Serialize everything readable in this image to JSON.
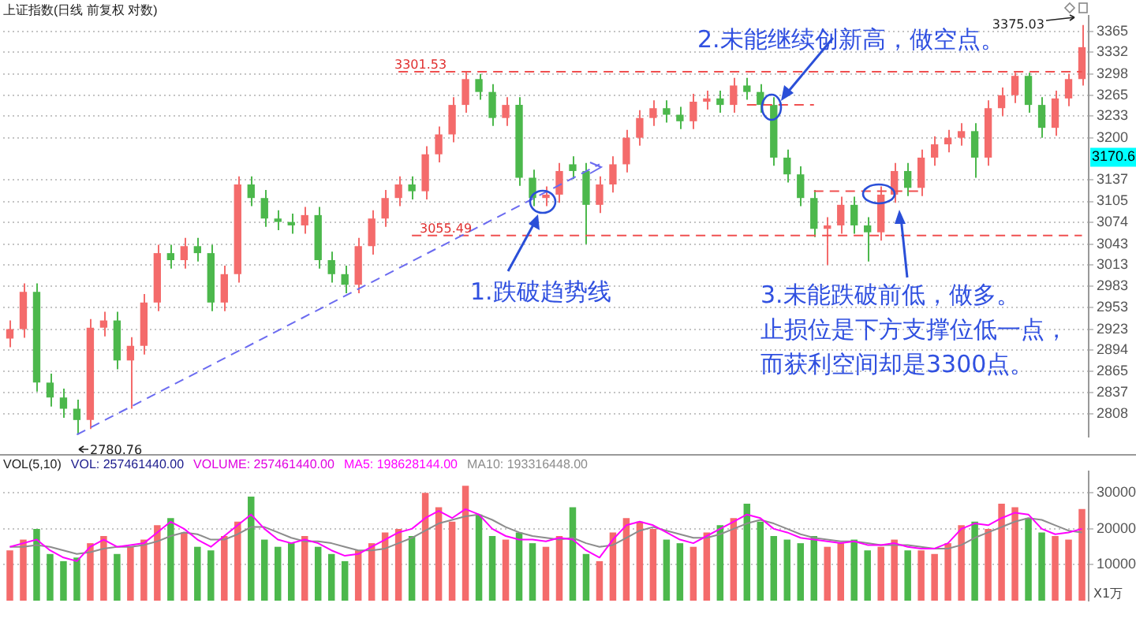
{
  "chart_data": [
    {
      "type": "candlestick",
      "title": "上证指数(日线 前复权 对数)",
      "categories": [
        null,
        null,
        null,
        null,
        null,
        null,
        null,
        null,
        null,
        null,
        null,
        null,
        null,
        null,
        null,
        null,
        null,
        null,
        null,
        null,
        null,
        null,
        null,
        null,
        null,
        null,
        null,
        null,
        null,
        null,
        null,
        null,
        null,
        null,
        null,
        null,
        null,
        null,
        null,
        null,
        null,
        null,
        null,
        null,
        null,
        null,
        null,
        null,
        null,
        null,
        null,
        null,
        null,
        null,
        null,
        null,
        null,
        null,
        null,
        null,
        null,
        null,
        null,
        null,
        null,
        null,
        null,
        null,
        null,
        null,
        null,
        null,
        null,
        null,
        null,
        null,
        null,
        null,
        null,
        null,
        null
      ],
      "ohlc": [
        [
          2910,
          2935,
          2898,
          2923
        ],
        [
          2923,
          2987,
          2911,
          2975
        ],
        [
          2975,
          2987,
          2838,
          2850
        ],
        [
          2850,
          2862,
          2818,
          2830
        ],
        [
          2830,
          2842,
          2803,
          2815
        ],
        [
          2815,
          2827,
          2780.76,
          2800
        ],
        [
          2800,
          2937,
          2788,
          2925
        ],
        [
          2925,
          2947,
          2913,
          2935
        ],
        [
          2935,
          2947,
          2868,
          2880
        ],
        [
          2880,
          2912,
          2815,
          2900
        ],
        [
          2900,
          2972,
          2888,
          2960
        ],
        [
          2960,
          3042,
          2948,
          3030
        ],
        [
          3030,
          3042,
          3008,
          3020
        ],
        [
          3020,
          3052,
          3008,
          3040
        ],
        [
          3040,
          3052,
          3018,
          3030
        ],
        [
          3030,
          3042,
          2948,
          2960
        ],
        [
          2960,
          3012,
          2948,
          3000
        ],
        [
          3000,
          3142,
          2988,
          3130
        ],
        [
          3130,
          3142,
          3098,
          3110
        ],
        [
          3110,
          3122,
          3068,
          3080
        ],
        [
          3080,
          3092,
          3063,
          3075
        ],
        [
          3075,
          3087,
          3058,
          3070
        ],
        [
          3070,
          3097,
          3058,
          3085
        ],
        [
          3085,
          3097,
          3008,
          3020
        ],
        [
          3020,
          3032,
          2988,
          3000
        ],
        [
          3000,
          3012,
          2973,
          2985
        ],
        [
          2985,
          3052,
          2973,
          3040
        ],
        [
          3040,
          3092,
          3028,
          3080
        ],
        [
          3080,
          3122,
          3068,
          3110
        ],
        [
          3110,
          3142,
          3098,
          3130
        ],
        [
          3130,
          3142,
          3108,
          3120
        ],
        [
          3120,
          3187,
          3108,
          3175
        ],
        [
          3175,
          3217,
          3163,
          3205
        ],
        [
          3205,
          3262,
          3193,
          3250
        ],
        [
          3250,
          3301.53,
          3238,
          3290
        ],
        [
          3290,
          3298,
          3258,
          3270
        ],
        [
          3270,
          3282,
          3218,
          3230
        ],
        [
          3230,
          3262,
          3218,
          3250
        ],
        [
          3250,
          3262,
          3128,
          3140
        ],
        [
          3140,
          3152,
          3098,
          3110
        ],
        [
          3110,
          3127,
          3098,
          3115
        ],
        [
          3115,
          3162,
          3103,
          3150
        ],
        [
          3160,
          3172,
          3138,
          3150
        ],
        [
          3150,
          3162,
          3043,
          3100
        ],
        [
          3100,
          3142,
          3088,
          3130
        ],
        [
          3130,
          3172,
          3118,
          3160
        ],
        [
          3160,
          3212,
          3148,
          3200
        ],
        [
          3200,
          3242,
          3188,
          3230
        ],
        [
          3230,
          3257,
          3218,
          3245
        ],
        [
          3245,
          3257,
          3223,
          3235
        ],
        [
          3235,
          3247,
          3213,
          3225
        ],
        [
          3225,
          3267,
          3213,
          3255
        ],
        [
          3255,
          3272,
          3243,
          3260
        ],
        [
          3260,
          3272,
          3238,
          3250
        ],
        [
          3250,
          3292,
          3238,
          3280
        ],
        [
          3280,
          3292,
          3258,
          3270
        ],
        [
          3270,
          3282,
          3238,
          3250
        ],
        [
          3250,
          3262,
          3158,
          3170
        ],
        [
          3170,
          3182,
          3133,
          3145
        ],
        [
          3145,
          3157,
          3098,
          3110
        ],
        [
          3110,
          3122,
          3053,
          3065
        ],
        [
          3065,
          3082,
          3013,
          3070
        ],
        [
          3070,
          3112,
          3058,
          3100
        ],
        [
          3100,
          3112,
          3058,
          3070
        ],
        [
          3070,
          3082,
          3018,
          3060
        ],
        [
          3060,
          3127,
          3048,
          3115
        ],
        [
          3115,
          3162,
          3103,
          3150
        ],
        [
          3150,
          3162,
          3113,
          3125
        ],
        [
          3125,
          3182,
          3113,
          3170
        ],
        [
          3170,
          3202,
          3158,
          3190
        ],
        [
          3190,
          3212,
          3178,
          3200
        ],
        [
          3200,
          3222,
          3188,
          3210
        ],
        [
          3210,
          3222,
          3140,
          3170
        ],
        [
          3170,
          3257,
          3158,
          3245
        ],
        [
          3245,
          3277,
          3233,
          3265
        ],
        [
          3265,
          3300,
          3253,
          3295
        ],
        [
          3295,
          3300,
          3238,
          3250
        ],
        [
          3250,
          3262,
          3200,
          3215
        ],
        [
          3215,
          3272,
          3203,
          3260
        ],
        [
          3260,
          3298,
          3248,
          3290
        ],
        [
          3290,
          3375.03,
          3280,
          3340
        ]
      ],
      "colors": [
        "#f46b6b",
        "#f46b6b",
        "#4cb84c",
        "#4cb84c",
        "#4cb84c",
        "#4cb84c",
        "#f46b6b",
        "#f46b6b",
        "#4cb84c",
        "#f46b6b",
        "#f46b6b",
        "#f46b6b",
        "#4cb84c",
        "#f46b6b",
        "#4cb84c",
        "#4cb84c",
        "#f46b6b",
        "#f46b6b",
        "#4cb84c",
        "#4cb84c",
        "#4cb84c",
        "#4cb84c",
        "#f46b6b",
        "#4cb84c",
        "#4cb84c",
        "#4cb84c",
        "#f46b6b",
        "#f46b6b",
        "#f46b6b",
        "#f46b6b",
        "#4cb84c",
        "#f46b6b",
        "#f46b6b",
        "#f46b6b",
        "#f46b6b",
        "#4cb84c",
        "#4cb84c",
        "#f46b6b",
        "#4cb84c",
        "#4cb84c",
        "#f46b6b",
        "#f46b6b",
        "#4cb84c",
        "#4cb84c",
        "#f46b6b",
        "#f46b6b",
        "#f46b6b",
        "#f46b6b",
        "#f46b6b",
        "#4cb84c",
        "#4cb84c",
        "#f46b6b",
        "#f46b6b",
        "#4cb84c",
        "#f46b6b",
        "#4cb84c",
        "#4cb84c",
        "#4cb84c",
        "#4cb84c",
        "#4cb84c",
        "#4cb84c",
        "#f46b6b",
        "#f46b6b",
        "#4cb84c",
        "#4cb84c",
        "#f46b6b",
        "#f46b6b",
        "#4cb84c",
        "#f46b6b",
        "#f46b6b",
        "#f46b6b",
        "#f46b6b",
        "#4cb84c",
        "#f46b6b",
        "#f46b6b",
        "#f46b6b",
        "#4cb84c",
        "#4cb84c",
        "#f46b6b",
        "#f46b6b",
        "#f46b6b"
      ],
      "series": [
        {
          "type": "line",
          "color": "#6b6bf0",
          "line_style": "dashed",
          "values": [
            null,
            null,
            null,
            null,
            null,
            2780.76,
            null,
            null,
            null,
            null,
            null,
            null,
            null,
            null,
            null,
            null,
            null,
            null,
            null,
            null,
            null,
            null,
            null,
            null,
            null,
            null,
            null,
            null,
            null,
            null,
            null,
            null,
            null,
            null,
            null,
            null,
            null,
            null,
            null,
            null,
            null,
            null,
            null,
            null,
            3160,
            null,
            null,
            null,
            null,
            null,
            null,
            null,
            null,
            null,
            null,
            null,
            null,
            null,
            null,
            null,
            null,
            null,
            null,
            null,
            null,
            null,
            null,
            null,
            null,
            null,
            null,
            null,
            null,
            null,
            null,
            null,
            null,
            null,
            null,
            null,
            null
          ]
        },
        {
          "type": "line",
          "color": "#f05050",
          "line_style": "dashed",
          "values": [
            null,
            null,
            null,
            null,
            null,
            null,
            null,
            null,
            null,
            null,
            null,
            null,
            null,
            null,
            null,
            null,
            null,
            null,
            null,
            null,
            null,
            null,
            null,
            null,
            null,
            null,
            null,
            null,
            null,
            3301.53,
            3301.53,
            3301.53,
            3301.53,
            3301.53,
            3301.53,
            3301.53,
            3301.53,
            3301.53,
            3301.53,
            3301.53,
            3301.53,
            3301.53,
            3301.53,
            3301.53,
            3301.53,
            3301.53,
            3301.53,
            3301.53,
            3301.53,
            3301.53,
            3301.53,
            3301.53,
            3301.53,
            3301.53,
            3301.53,
            3301.53,
            3301.53,
            3301.53,
            3301.53,
            3301.53,
            3301.53,
            3301.53,
            3301.53,
            3301.53,
            3301.53,
            3301.53,
            3301.53,
            3301.53,
            3301.53,
            3301.53,
            3301.53,
            3301.53,
            3301.53,
            3301.53,
            3301.53,
            3301.53,
            3301.53,
            3301.53,
            3301.53,
            3301.53,
            3301.53
          ]
        },
        {
          "type": "line",
          "color": "#f05050",
          "line_style": "dashed",
          "values": [
            null,
            null,
            null,
            null,
            null,
            null,
            null,
            null,
            null,
            null,
            null,
            null,
            null,
            null,
            null,
            null,
            null,
            null,
            null,
            null,
            null,
            null,
            null,
            null,
            null,
            null,
            null,
            null,
            null,
            null,
            3055.49,
            3055.49,
            3055.49,
            3055.49,
            3055.49,
            3055.49,
            3055.49,
            3055.49,
            3055.49,
            3055.49,
            3055.49,
            3055.49,
            3055.49,
            3055.49,
            3055.49,
            3055.49,
            3055.49,
            3055.49,
            3055.49,
            3055.49,
            3055.49,
            3055.49,
            3055.49,
            3055.49,
            3055.49,
            3055.49,
            3055.49,
            3055.49,
            3055.49,
            3055.49,
            3055.49,
            3055.49,
            3055.49,
            3055.49,
            3055.49,
            3055.49,
            3055.49,
            3055.49,
            3055.49,
            3055.49,
            3055.49,
            3055.49,
            3055.49,
            3055.49,
            3055.49,
            3055.49,
            3055.49,
            3055.49,
            3055.49,
            3055.49,
            3055.49
          ]
        },
        {
          "type": "line",
          "color": "#f05050",
          "line_style": "dashed",
          "values": [
            null,
            null,
            null,
            null,
            null,
            null,
            null,
            null,
            null,
            null,
            null,
            null,
            null,
            null,
            null,
            null,
            null,
            null,
            null,
            null,
            null,
            null,
            null,
            null,
            null,
            null,
            null,
            null,
            null,
            null,
            null,
            null,
            null,
            null,
            null,
            null,
            null,
            null,
            null,
            null,
            null,
            null,
            null,
            null,
            null,
            null,
            null,
            null,
            null,
            null,
            null,
            null,
            null,
            null,
            null,
            3250,
            3250,
            3250,
            3250,
            3250,
            3250,
            null,
            null,
            null,
            null,
            null,
            null,
            null,
            null,
            null,
            null,
            null,
            null,
            null,
            null,
            null,
            null,
            null,
            null,
            null,
            null
          ]
        },
        {
          "type": "line",
          "color": "#f05050",
          "line_style": "dashed",
          "values": [
            null,
            null,
            null,
            null,
            null,
            null,
            null,
            null,
            null,
            null,
            null,
            null,
            null,
            null,
            null,
            null,
            null,
            null,
            null,
            null,
            null,
            null,
            null,
            null,
            null,
            null,
            null,
            null,
            null,
            null,
            null,
            null,
            null,
            null,
            null,
            null,
            null,
            null,
            null,
            null,
            null,
            null,
            null,
            null,
            null,
            null,
            null,
            null,
            null,
            null,
            null,
            null,
            null,
            null,
            null,
            null,
            null,
            null,
            null,
            null,
            3120,
            3120,
            3120,
            3120,
            3120,
            3120,
            3120,
            3120,
            3120,
            null,
            null,
            null,
            null,
            null,
            null,
            null,
            null,
            null,
            null,
            null,
            null
          ]
        }
      ],
      "log": "y",
      "ylim": [
        2778,
        3390
      ],
      "yticks": [
        2808,
        2837,
        2865,
        2894,
        2923,
        2953,
        2983,
        3013,
        3043,
        3074,
        3105,
        3137,
        3200,
        3233,
        3265,
        3298,
        3332,
        3365
      ],
      "grid": "y",
      "tick_labels": "y",
      "annotations": [
        {
          "text": "3301.53",
          "y": 3301.53
        },
        {
          "text": "3055.49",
          "y": 3055.49
        },
        "2780.76",
        "3375.03",
        {
          "text": "3170.6",
          "y": 3170.6
        },
        "1.跌破趋势线",
        "2.未能继续创新高，做空点。",
        "3.未能跌破前低，做多。",
        "止损位是下方支撑位低一点，",
        "而获利空间却是3300点。"
      ]
    },
    {
      "type": "bar",
      "title": "VOL(5,10)",
      "categories": [
        null,
        null,
        null,
        null,
        null,
        null,
        null,
        null,
        null,
        null,
        null,
        null,
        null,
        null,
        null,
        null,
        null,
        null,
        null,
        null,
        null,
        null,
        null,
        null,
        null,
        null,
        null,
        null,
        null,
        null,
        null,
        null,
        null,
        null,
        null,
        null,
        null,
        null,
        null,
        null,
        null,
        null,
        null,
        null,
        null,
        null,
        null,
        null,
        null,
        null,
        null,
        null,
        null,
        null,
        null,
        null,
        null,
        null,
        null,
        null,
        null,
        null,
        null,
        null,
        null,
        null,
        null,
        null,
        null,
        null,
        null,
        null,
        null,
        null,
        null,
        null,
        null,
        null,
        null,
        null,
        null
      ],
      "values": [
        14000,
        17000,
        20000,
        13000,
        11000,
        12000,
        16000,
        18000,
        13000,
        15000,
        17000,
        21000,
        23000,
        19000,
        15000,
        14000,
        18000,
        22000,
        29000,
        17000,
        15000,
        16000,
        18000,
        15000,
        13000,
        11000,
        14000,
        16000,
        19000,
        20000,
        18000,
        30000,
        26000,
        22000,
        32000,
        24000,
        18000,
        17000,
        19000,
        16000,
        15000,
        18000,
        26000,
        13000,
        11000,
        19000,
        23000,
        22000,
        20000,
        17000,
        16000,
        15000,
        19000,
        21000,
        23000,
        27000,
        22000,
        18000,
        17000,
        16000,
        18000,
        15000,
        16000,
        17000,
        14000,
        15000,
        17000,
        14000,
        14000,
        13000,
        16000,
        21000,
        22000,
        20000,
        27000,
        26000,
        23000,
        19000,
        18000,
        17000,
        25500
      ],
      "colors": [
        "#f46b6b",
        "#f46b6b",
        "#4cb84c",
        "#4cb84c",
        "#4cb84c",
        "#4cb84c",
        "#f46b6b",
        "#f46b6b",
        "#4cb84c",
        "#f46b6b",
        "#f46b6b",
        "#f46b6b",
        "#4cb84c",
        "#f46b6b",
        "#4cb84c",
        "#4cb84c",
        "#f46b6b",
        "#f46b6b",
        "#4cb84c",
        "#4cb84c",
        "#4cb84c",
        "#4cb84c",
        "#f46b6b",
        "#4cb84c",
        "#4cb84c",
        "#4cb84c",
        "#f46b6b",
        "#f46b6b",
        "#f46b6b",
        "#f46b6b",
        "#4cb84c",
        "#f46b6b",
        "#f46b6b",
        "#f46b6b",
        "#f46b6b",
        "#4cb84c",
        "#4cb84c",
        "#f46b6b",
        "#4cb84c",
        "#4cb84c",
        "#f46b6b",
        "#f46b6b",
        "#4cb84c",
        "#4cb84c",
        "#f46b6b",
        "#f46b6b",
        "#f46b6b",
        "#f46b6b",
        "#f46b6b",
        "#4cb84c",
        "#4cb84c",
        "#f46b6b",
        "#f46b6b",
        "#4cb84c",
        "#f46b6b",
        "#4cb84c",
        "#4cb84c",
        "#4cb84c",
        "#4cb84c",
        "#4cb84c",
        "#4cb84c",
        "#f46b6b",
        "#f46b6b",
        "#4cb84c",
        "#4cb84c",
        "#f46b6b",
        "#f46b6b",
        "#4cb84c",
        "#f46b6b",
        "#f46b6b",
        "#f46b6b",
        "#f46b6b",
        "#4cb84c",
        "#f46b6b",
        "#f46b6b",
        "#f46b6b",
        "#4cb84c",
        "#4cb84c",
        "#f46b6b",
        "#f46b6b",
        "#f46b6b"
      ],
      "series": [
        {
          "name": "MA5: 198628144.00",
          "type": "line",
          "color": "#ff00ff",
          "values": [
            15000,
            16000,
            17000,
            14000,
            12000,
            11000,
            15000,
            17000,
            15000,
            15500,
            16000,
            19000,
            22000,
            20000,
            17000,
            15000,
            18000,
            21000,
            24000,
            20000,
            17000,
            16000,
            17000,
            16000,
            14000,
            12500,
            13000,
            15000,
            17000,
            19000,
            20000,
            23000,
            25000,
            23000,
            25500,
            24000,
            20000,
            18000,
            17000,
            17000,
            16500,
            17500,
            17000,
            14000,
            12000,
            17000,
            21000,
            22000,
            21000,
            19000,
            17000,
            16000,
            18000,
            20000,
            22000,
            24000,
            23000,
            20000,
            19000,
            17500,
            17000,
            16500,
            16000,
            16500,
            15500,
            15500,
            16000,
            15000,
            14500,
            14500,
            16000,
            20000,
            21500,
            21000,
            23000,
            24500,
            24000,
            20000,
            18500,
            19000,
            20000
          ]
        },
        {
          "name": "MA10: 193316448.00",
          "type": "line",
          "color": "#8c8c8c",
          "values": [
            15000,
            15000,
            15500,
            15000,
            14000,
            13000,
            13500,
            14500,
            15000,
            15000,
            15500,
            16500,
            18000,
            19000,
            18500,
            17000,
            17000,
            18500,
            20500,
            20500,
            19000,
            17500,
            16500,
            16500,
            16000,
            15000,
            14000,
            14000,
            14500,
            16000,
            17500,
            19500,
            21500,
            22500,
            23500,
            24000,
            22500,
            20500,
            19000,
            18000,
            17500,
            17000,
            17500,
            16000,
            15000,
            15500,
            17500,
            19500,
            20500,
            19500,
            18500,
            17500,
            17500,
            18500,
            20000,
            21500,
            22500,
            21500,
            20000,
            18500,
            17500,
            17000,
            16500,
            16500,
            16000,
            15500,
            15500,
            15500,
            15000,
            14500,
            14500,
            15500,
            17500,
            19000,
            20500,
            22000,
            23000,
            22500,
            21000,
            19500,
            19000
          ]
        }
      ],
      "ylim": [
        0,
        36000
      ],
      "yticks": [
        10000,
        20000,
        30000
      ],
      "grid": "y",
      "legend": "top left",
      "ylabel": "X1万",
      "tick_labels": "y",
      "annotations": [
        "VOL: 257461440.00",
        "VOLUME: 257461440.00"
      ]
    }
  ]
}
